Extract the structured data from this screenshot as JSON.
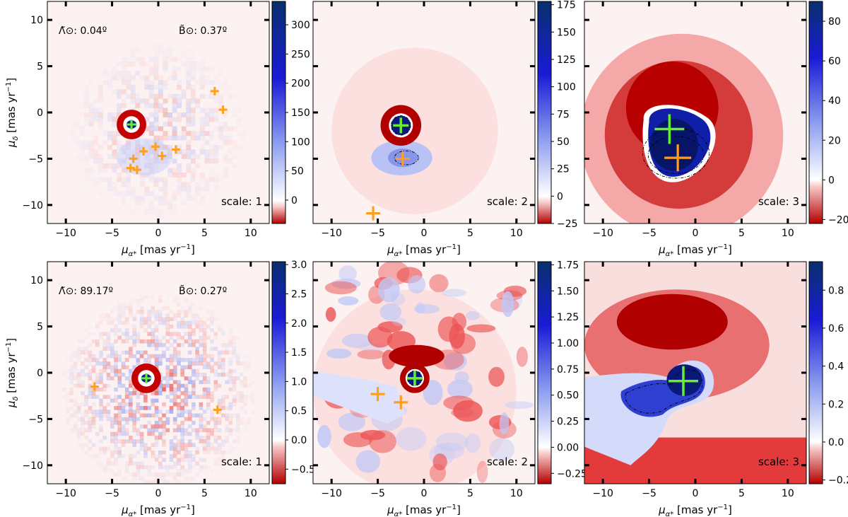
{
  "figure": {
    "axis_x_label_main": "μ",
    "axis_x_label_sub": "α*",
    "axis_x_label_unit": "[mas yr",
    "axis_x_label_exp": "−1",
    "axis_y_label_main": "μ",
    "axis_y_label_sub": "δ",
    "axis_y_label_unit": "[mas yr",
    "axis_y_label_exp": "−1",
    "close_bracket": "]",
    "colors": {
      "positive_max": "#08306b",
      "zero": "#ffffff",
      "negative_max": "#b30000",
      "primary_marker": "#66ee33",
      "secondary_marker": "#ff9f1a",
      "contour": "#000000"
    }
  },
  "chart_data": [
    {
      "type": "heatmap",
      "row": 1,
      "col": 1,
      "annotations": [
        "Λ̃⊙: 0.04º",
        "B̃⊙: 0.37º"
      ],
      "scale_label": "scale: 1",
      "xticks": [
        -10,
        -5,
        0,
        5,
        10
      ],
      "yticks": [
        -10,
        -5,
        0,
        5,
        10
      ],
      "xlim": [
        -12,
        12
      ],
      "ylim": [
        -12,
        12
      ],
      "colorbar": {
        "min": -40,
        "max": 340,
        "ticks": [
          0,
          50,
          100,
          150,
          200,
          250,
          300
        ]
      },
      "peak": {
        "x": -2.9,
        "y": -1.3,
        "amp": 340
      },
      "primary_markers": [
        [
          -2.9,
          -1.3
        ]
      ],
      "secondary_markers": [
        [
          6.1,
          2.3
        ],
        [
          7.0,
          0.3
        ],
        [
          -2.7,
          -5.0
        ],
        [
          -1.6,
          -4.2
        ],
        [
          -0.3,
          -3.7
        ],
        [
          0.4,
          -4.7
        ],
        [
          1.9,
          -4.0
        ],
        [
          -3.0,
          -6.0
        ],
        [
          -2.3,
          -6.2
        ]
      ],
      "grid": false
    },
    {
      "type": "heatmap",
      "row": 1,
      "col": 2,
      "scale_label": "scale: 2",
      "xticks": [
        -10,
        -5,
        0,
        5,
        10
      ],
      "yticks": [
        -10,
        -5,
        0,
        5,
        10
      ],
      "xlim": [
        -12,
        12
      ],
      "ylim": [
        -12,
        12
      ],
      "colorbar": {
        "min": -25,
        "max": 178,
        "ticks": [
          -25,
          0,
          25,
          50,
          75,
          100,
          125,
          150,
          175
        ]
      },
      "peak": {
        "x": -2.5,
        "y": -1.4,
        "amp": 175
      },
      "primary_markers": [
        [
          -2.5,
          -1.4
        ]
      ],
      "secondary_markers": [
        [
          -2.3,
          -5.0
        ],
        [
          -5.5,
          -10.9
        ]
      ],
      "grid": false
    },
    {
      "type": "heatmap",
      "row": 1,
      "col": 3,
      "scale_label": "scale: 3",
      "xticks": [
        -10,
        -5,
        0,
        5,
        10
      ],
      "yticks": [
        -10,
        -5,
        0,
        5,
        10
      ],
      "xlim": [
        -12,
        12
      ],
      "ylim": [
        -12,
        12
      ],
      "colorbar": {
        "min": -22,
        "max": 90,
        "ticks": [
          -20,
          0,
          20,
          40,
          60,
          80
        ]
      },
      "peak": {
        "x": -2.5,
        "y": -2.5,
        "amp": 88
      },
      "primary_markers": [
        [
          -2.8,
          -1.8
        ]
      ],
      "secondary_markers": [
        [
          -1.9,
          -4.9
        ]
      ],
      "grid": false
    },
    {
      "type": "heatmap",
      "row": 2,
      "col": 1,
      "annotations": [
        "Λ̃⊙: 89.17º",
        "B̃⊙: 0.27º"
      ],
      "scale_label": "scale: 1",
      "xticks": [
        -10,
        -5,
        0,
        5,
        10
      ],
      "yticks": [
        -10,
        -5,
        0,
        5,
        10
      ],
      "xlim": [
        -12,
        12
      ],
      "ylim": [
        -12,
        12
      ],
      "colorbar": {
        "min": -0.75,
        "max": 3.05,
        "ticks": [
          -0.5,
          0.0,
          0.5,
          1.0,
          1.5,
          2.0,
          2.5,
          3.0
        ]
      },
      "peak": {
        "x": -1.3,
        "y": -0.6,
        "amp": 3.0
      },
      "primary_markers": [
        [
          -1.3,
          -0.6
        ]
      ],
      "secondary_markers": [
        [
          -6.9,
          -1.5
        ],
        [
          6.4,
          -4.0
        ]
      ],
      "grid": false
    },
    {
      "type": "heatmap",
      "row": 2,
      "col": 2,
      "scale_label": "scale: 2",
      "xticks": [
        -10,
        -5,
        0,
        5,
        10
      ],
      "yticks": [
        -10,
        -5,
        0,
        5,
        10
      ],
      "xlim": [
        -12,
        12
      ],
      "ylim": [
        -12,
        12
      ],
      "colorbar": {
        "min": -0.35,
        "max": 1.78,
        "ticks": [
          -0.25,
          0.0,
          0.25,
          0.5,
          0.75,
          1.0,
          1.25,
          1.5,
          1.75
        ]
      },
      "peak": {
        "x": -1.0,
        "y": -0.6,
        "amp": 1.75
      },
      "primary_markers": [
        [
          -1.0,
          -0.6
        ]
      ],
      "secondary_markers": [
        [
          -5.0,
          -2.3
        ],
        [
          -2.5,
          -3.2
        ]
      ],
      "grid": false
    },
    {
      "type": "heatmap",
      "row": 2,
      "col": 3,
      "scale_label": "scale: 3",
      "xticks": [
        -10,
        -5,
        0,
        5,
        10
      ],
      "yticks": [
        -10,
        -5,
        0,
        5,
        10
      ],
      "xlim": [
        -12,
        12
      ],
      "ylim": [
        -12,
        12
      ],
      "colorbar": {
        "min": -0.22,
        "max": 0.95,
        "ticks": [
          -0.2,
          0.0,
          0.2,
          0.4,
          0.6,
          0.8
        ]
      },
      "peak": {
        "x": -1.3,
        "y": -1.0,
        "amp": 0.92
      },
      "primary_markers": [
        [
          -1.3,
          -0.9
        ]
      ],
      "secondary_markers": [],
      "grid": false
    }
  ]
}
